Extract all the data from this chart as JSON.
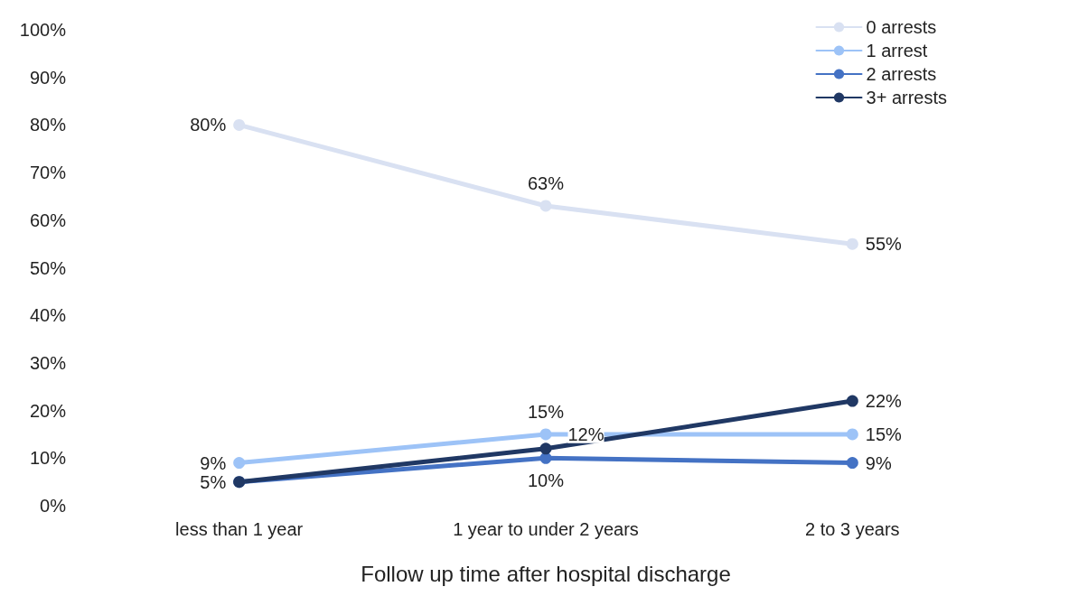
{
  "chart_data": {
    "type": "line",
    "xlabel": "Follow up time after hospital discharge",
    "categories": [
      "less than 1 year",
      "1 year to under 2 years",
      "2 to 3 years"
    ],
    "series": [
      {
        "name": "0 arrests",
        "color": "#d9e1f2",
        "values": [
          80,
          63,
          55
        ],
        "value_labels": [
          "80%",
          "63%",
          "55%"
        ]
      },
      {
        "name": "1 arrest",
        "color": "#9dc3f7",
        "values": [
          9,
          15,
          15
        ],
        "value_labels": [
          "9%",
          "15%",
          "15%"
        ]
      },
      {
        "name": "2 arrests",
        "color": "#4472c4",
        "values": [
          5,
          10,
          9
        ],
        "value_labels": [
          "5%",
          "10%",
          "9%"
        ]
      },
      {
        "name": "3+ arrests",
        "color": "#203864",
        "values": [
          5,
          12,
          22
        ],
        "value_labels": [
          null,
          "12%",
          "22%"
        ]
      }
    ],
    "ylim": [
      0,
      100
    ],
    "yticks": [
      {
        "value": 0,
        "label": "0%"
      },
      {
        "value": 10,
        "label": "10%"
      },
      {
        "value": 20,
        "label": "20%"
      },
      {
        "value": 30,
        "label": "30%"
      },
      {
        "value": 40,
        "label": "40%"
      },
      {
        "value": 50,
        "label": "50%"
      },
      {
        "value": 60,
        "label": "60%"
      },
      {
        "value": 70,
        "label": "70%"
      },
      {
        "value": 80,
        "label": "80%"
      },
      {
        "value": 90,
        "label": "90%"
      },
      {
        "value": 100,
        "label": "100%"
      }
    ],
    "grid": false,
    "legend": "top right",
    "marker": "circle",
    "line_style": "solid"
  }
}
